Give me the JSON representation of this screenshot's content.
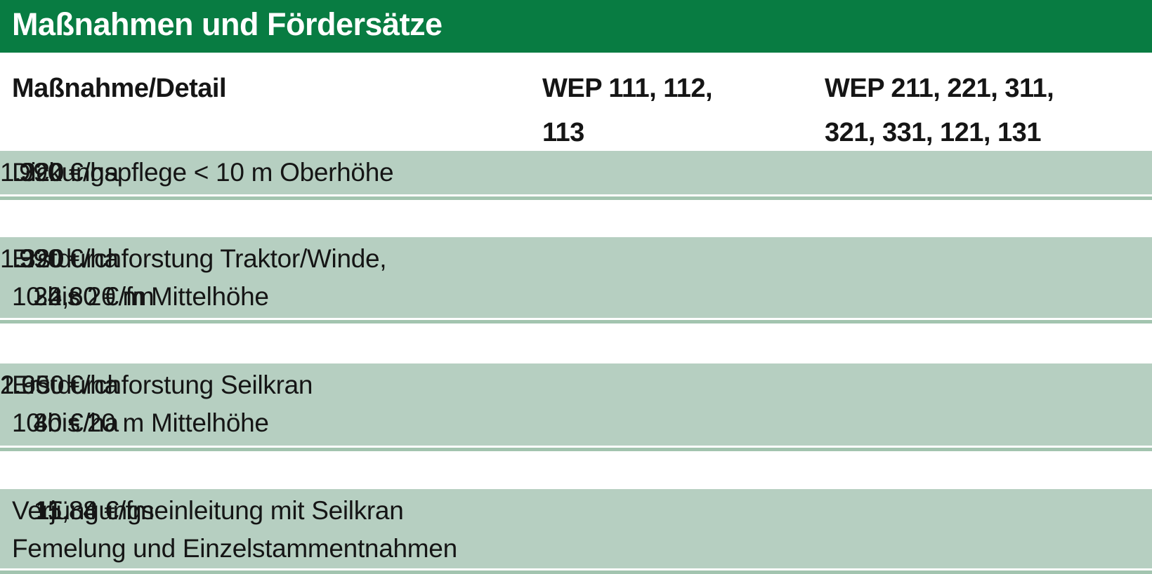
{
  "title": "Maßnahmen und Fördersätze",
  "columns": {
    "c1": "Maßnahme/Detail",
    "c2": [
      "WEP 111, 112,",
      "113"
    ],
    "c3": [
      "WEP 211, 221, 311,",
      "321, 331, 121, 131"
    ]
  },
  "rows": [
    {
      "label": [
        "Dickungspflege < 10 m Oberhöhe"
      ],
      "c2": [
        {
          "i": "990",
          "r": " €/ha"
        }
      ],
      "c3": [
        {
          "i": "1.320",
          "r": " €/ha"
        }
      ]
    },
    {
      "label": [
        "Erstdurchforstung Traktor/Winde,",
        "10 bis 20 m Mittelhöhe"
      ],
      "c2": [
        {
          "i": "990",
          "r": " €/ha"
        },
        {
          "i": "24",
          "r": ",60 €/fm"
        }
      ],
      "c3": [
        {
          "i": "1.320",
          "r": " €/ha"
        },
        {
          "i": "32",
          "r": ",80 €/fm"
        }
      ]
    },
    {
      "label": [
        "Erstdurchforstung Seilkran",
        "10 bis 20 m Mittelhöhe"
      ],
      "c2": [
        {
          "i": "1.950",
          "r": " €/ha"
        },
        {
          "i": "30",
          "r": " €/ha"
        }
      ],
      "c3": [
        {
          "i": "2.600",
          "r": " €/ha"
        },
        {
          "i": "40",
          "r": " €/ha"
        }
      ]
    },
    {
      "label": [
        "Verjüngungseinleitung mit Seilkran",
        "Femelung und Einzelstammentnahmen"
      ],
      "c2": [
        {
          "i": "11",
          "r": ",88 €/fm"
        }
      ],
      "c3": [
        {
          "i": "15",
          "r": ",84 €/fm"
        }
      ]
    }
  ],
  "colors": {
    "header_green": "#087c42",
    "band_green": "#b6cfc1",
    "separator_green": "#a2c4af",
    "text": "#151515",
    "title_text": "#ffffff"
  },
  "chart_data": {
    "type": "table",
    "title": "Maßnahmen und Fördersätze",
    "columns": [
      "Maßnahme/Detail",
      "WEP 111, 112, 113",
      "WEP 211, 221, 311, 321, 331, 121, 131"
    ],
    "rows": [
      [
        "Dickungspflege < 10 m Oberhöhe",
        "990 €/ha",
        "1.320 €/ha"
      ],
      [
        "Erstdurchforstung Traktor/Winde, 10 bis 20 m Mittelhöhe",
        "990 €/ha; 24,60 €/fm",
        "1.320 €/ha; 32,80 €/fm"
      ],
      [
        "Erstdurchforstung Seilkran 10 bis 20 m Mittelhöhe",
        "1.950 €/ha; 30 €/ha",
        "2.600 €/ha; 40 €/ha"
      ],
      [
        "Verjüngungseinleitung mit Seilkran Femelung und Einzelstammentnahmen",
        "11,88 €/fm",
        "15,84 €/fm"
      ]
    ],
    "units": [
      "€/ha",
      "€/fm"
    ],
    "layout": "green title bar, bold header row, light-green striped data bands with thin darker separator lines"
  }
}
